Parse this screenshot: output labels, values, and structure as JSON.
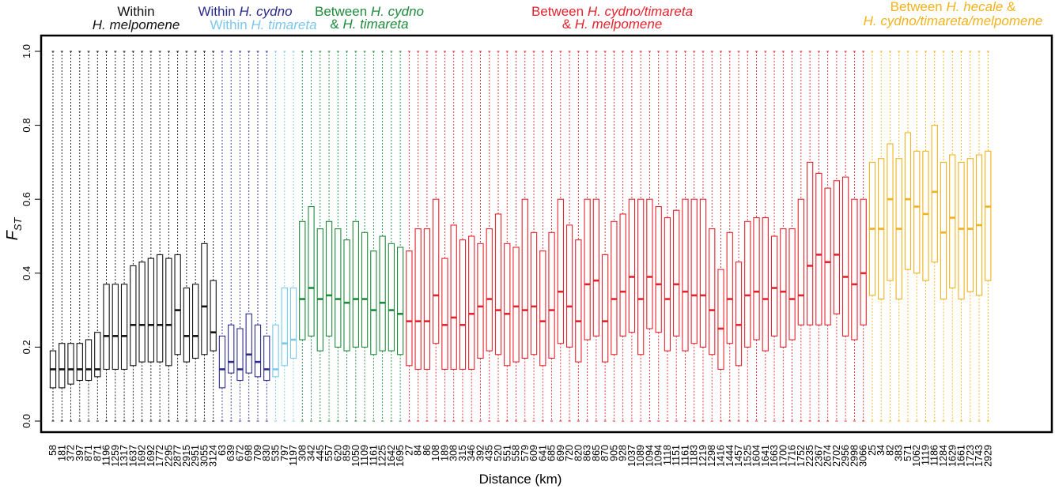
{
  "chart_data": {
    "type": "boxplot",
    "xlabel": "Distance (km)",
    "ylabel": "F",
    "ylabel_sub": "ST",
    "ylim": [
      0,
      1.0
    ],
    "yticks": [
      "0.0",
      "0.2",
      "0.4",
      "0.6",
      "0.8",
      "1.0"
    ],
    "colors": {
      "within_melpomene": "#111111",
      "within_cydno": "#2b2b8c",
      "within_timareta": "#7cc7ea",
      "cydno_vs_timareta": "#1f8a3c",
      "cydno_timareta_vs_melpomene": "#e3232d",
      "hecale_vs_all": "#f2b21b"
    },
    "group_labels": [
      {
        "id": "within_melpomene",
        "line1": "Within",
        "line2_plain": "",
        "line2_it": "H. melpomene"
      },
      {
        "id": "within_cydno",
        "line1_plain": "Within ",
        "line1_it": "H. cydno"
      },
      {
        "id": "within_timareta",
        "line1_plain": "Within ",
        "line1_it": "H. timareta"
      },
      {
        "id": "cydno_vs_timareta",
        "line1_plain": "Between ",
        "line1_it": "H. cydno",
        "line2_plain": "& ",
        "line2_it": "H. timareta"
      },
      {
        "id": "cydno_timareta_vs_melpomene",
        "line1_plain": "Between ",
        "line1_it": "H. cydno/timareta",
        "line2_plain": "& ",
        "line2_it": "H. melpomene"
      },
      {
        "id": "hecale_vs_all",
        "line1_plain": "Between ",
        "line1_it": "H. hecale",
        "line1_tail": " &",
        "line2_plain": "",
        "line2_it": "H. cydno/timareta/melpomene"
      }
    ],
    "groups": [
      {
        "id": "within_melpomene",
        "categories": [
          "58",
          "181",
          "372",
          "397",
          "871",
          "871",
          "1196",
          "1259",
          "1317",
          "1637",
          "1692",
          "1692",
          "1772",
          "2295",
          "2877",
          "2915",
          "2951",
          "3055",
          "3124"
        ],
        "q1": [
          0.09,
          0.09,
          0.1,
          0.11,
          0.11,
          0.12,
          0.14,
          0.14,
          0.14,
          0.15,
          0.16,
          0.16,
          0.16,
          0.15,
          0.18,
          0.16,
          0.17,
          0.18,
          0.19
        ],
        "median": [
          0.14,
          0.14,
          0.14,
          0.14,
          0.14,
          0.14,
          0.23,
          0.23,
          0.23,
          0.26,
          0.26,
          0.26,
          0.26,
          0.26,
          0.3,
          0.23,
          0.23,
          0.31,
          0.24
        ],
        "q3": [
          0.19,
          0.21,
          0.21,
          0.21,
          0.22,
          0.24,
          0.37,
          0.37,
          0.37,
          0.42,
          0.43,
          0.44,
          0.45,
          0.44,
          0.45,
          0.36,
          0.37,
          0.48,
          0.38
        ]
      },
      {
        "id": "within_cydno",
        "categories": [
          "63",
          "639",
          "672",
          "698",
          "709",
          "830"
        ],
        "q1": [
          0.09,
          0.13,
          0.11,
          0.13,
          0.12,
          0.11
        ],
        "median": [
          0.14,
          0.16,
          0.14,
          0.18,
          0.16,
          0.14
        ],
        "q3": [
          0.23,
          0.26,
          0.25,
          0.29,
          0.26,
          0.23
        ]
      },
      {
        "id": "within_timareta",
        "categories": [
          "535",
          "797",
          "1197"
        ],
        "q1": [
          0.12,
          0.15,
          0.17
        ],
        "median": [
          0.14,
          0.21,
          0.22
        ],
        "q3": [
          0.26,
          0.36,
          0.36
        ]
      },
      {
        "id": "cydno_vs_timareta",
        "categories": [
          "308",
          "342",
          "445",
          "557",
          "620",
          "859",
          "1050",
          "1109",
          "1161",
          "1225",
          "1642",
          "1695"
        ],
        "q1": [
          0.22,
          0.23,
          0.19,
          0.23,
          0.2,
          0.19,
          0.2,
          0.2,
          0.18,
          0.19,
          0.19,
          0.18
        ],
        "median": [
          0.33,
          0.36,
          0.33,
          0.34,
          0.33,
          0.32,
          0.33,
          0.33,
          0.3,
          0.32,
          0.3,
          0.29
        ],
        "q3": [
          0.54,
          0.58,
          0.52,
          0.54,
          0.52,
          0.49,
          0.54,
          0.51,
          0.46,
          0.5,
          0.48,
          0.47
        ]
      },
      {
        "id": "cydno_timareta_vs_melpomene",
        "categories": [
          "27",
          "84",
          "86",
          "108",
          "189",
          "308",
          "315",
          "346",
          "392",
          "435",
          "520",
          "551",
          "558",
          "579",
          "609",
          "641",
          "685",
          "699",
          "720",
          "820",
          "863",
          "865",
          "870",
          "905",
          "928",
          "1037",
          "1089",
          "1094",
          "1094",
          "1118",
          "1151",
          "1161",
          "1183",
          "1219",
          "1298",
          "1416",
          "1444",
          "1457",
          "1525",
          "1604",
          "1641",
          "1663",
          "1700",
          "1716",
          "1752",
          "2235",
          "2367",
          "2674",
          "2702",
          "2956",
          "2998",
          "3066"
        ],
        "q1": [
          0.15,
          0.14,
          0.14,
          0.21,
          0.14,
          0.14,
          0.14,
          0.14,
          0.17,
          0.19,
          0.18,
          0.15,
          0.16,
          0.17,
          0.18,
          0.15,
          0.17,
          0.21,
          0.2,
          0.16,
          0.22,
          0.23,
          0.16,
          0.18,
          0.23,
          0.24,
          0.18,
          0.25,
          0.24,
          0.19,
          0.23,
          0.19,
          0.21,
          0.2,
          0.18,
          0.14,
          0.21,
          0.15,
          0.2,
          0.22,
          0.19,
          0.23,
          0.2,
          0.22,
          0.26,
          0.26,
          0.26,
          0.26,
          0.29,
          0.23,
          0.22,
          0.26
        ],
        "median": [
          0.27,
          0.27,
          0.27,
          0.34,
          0.26,
          0.28,
          0.26,
          0.29,
          0.31,
          0.33,
          0.3,
          0.29,
          0.31,
          0.3,
          0.31,
          0.27,
          0.3,
          0.35,
          0.31,
          0.27,
          0.37,
          0.38,
          0.27,
          0.33,
          0.35,
          0.39,
          0.33,
          0.39,
          0.37,
          0.33,
          0.37,
          0.35,
          0.34,
          0.34,
          0.3,
          0.25,
          0.33,
          0.26,
          0.34,
          0.35,
          0.33,
          0.36,
          0.35,
          0.33,
          0.34,
          0.42,
          0.45,
          0.43,
          0.45,
          0.39,
          0.37,
          0.4
        ],
        "q3": [
          0.46,
          0.52,
          0.52,
          0.6,
          0.44,
          0.53,
          0.49,
          0.5,
          0.48,
          0.52,
          0.56,
          0.48,
          0.47,
          0.6,
          0.51,
          0.46,
          0.51,
          0.6,
          0.53,
          0.49,
          0.6,
          0.6,
          0.45,
          0.54,
          0.56,
          0.6,
          0.6,
          0.6,
          0.58,
          0.55,
          0.57,
          0.6,
          0.6,
          0.6,
          0.52,
          0.41,
          0.51,
          0.43,
          0.54,
          0.55,
          0.55,
          0.5,
          0.52,
          0.52,
          0.6,
          0.7,
          0.67,
          0.63,
          0.65,
          0.66,
          0.6,
          0.6
        ]
      },
      {
        "id": "hecale_vs_all",
        "categories": [
          "25",
          "34",
          "82",
          "383",
          "571",
          "1062",
          "1119",
          "1186",
          "1284",
          "1629",
          "1661",
          "1723",
          "1743",
          "2929"
        ],
        "q1": [
          0.34,
          0.33,
          0.38,
          0.33,
          0.41,
          0.4,
          0.38,
          0.43,
          0.33,
          0.36,
          0.33,
          0.35,
          0.34,
          0.38
        ],
        "median": [
          0.52,
          0.52,
          0.6,
          0.52,
          0.6,
          0.58,
          0.56,
          0.62,
          0.51,
          0.55,
          0.52,
          0.52,
          0.53,
          0.58
        ],
        "q3": [
          0.7,
          0.71,
          0.75,
          0.71,
          0.78,
          0.73,
          0.73,
          0.8,
          0.7,
          0.72,
          0.7,
          0.71,
          0.72,
          0.73
        ]
      }
    ],
    "whisker_low": 0.0,
    "whisker_high": 1.0,
    "grid": false,
    "legend": "none (group labels above plot)"
  }
}
